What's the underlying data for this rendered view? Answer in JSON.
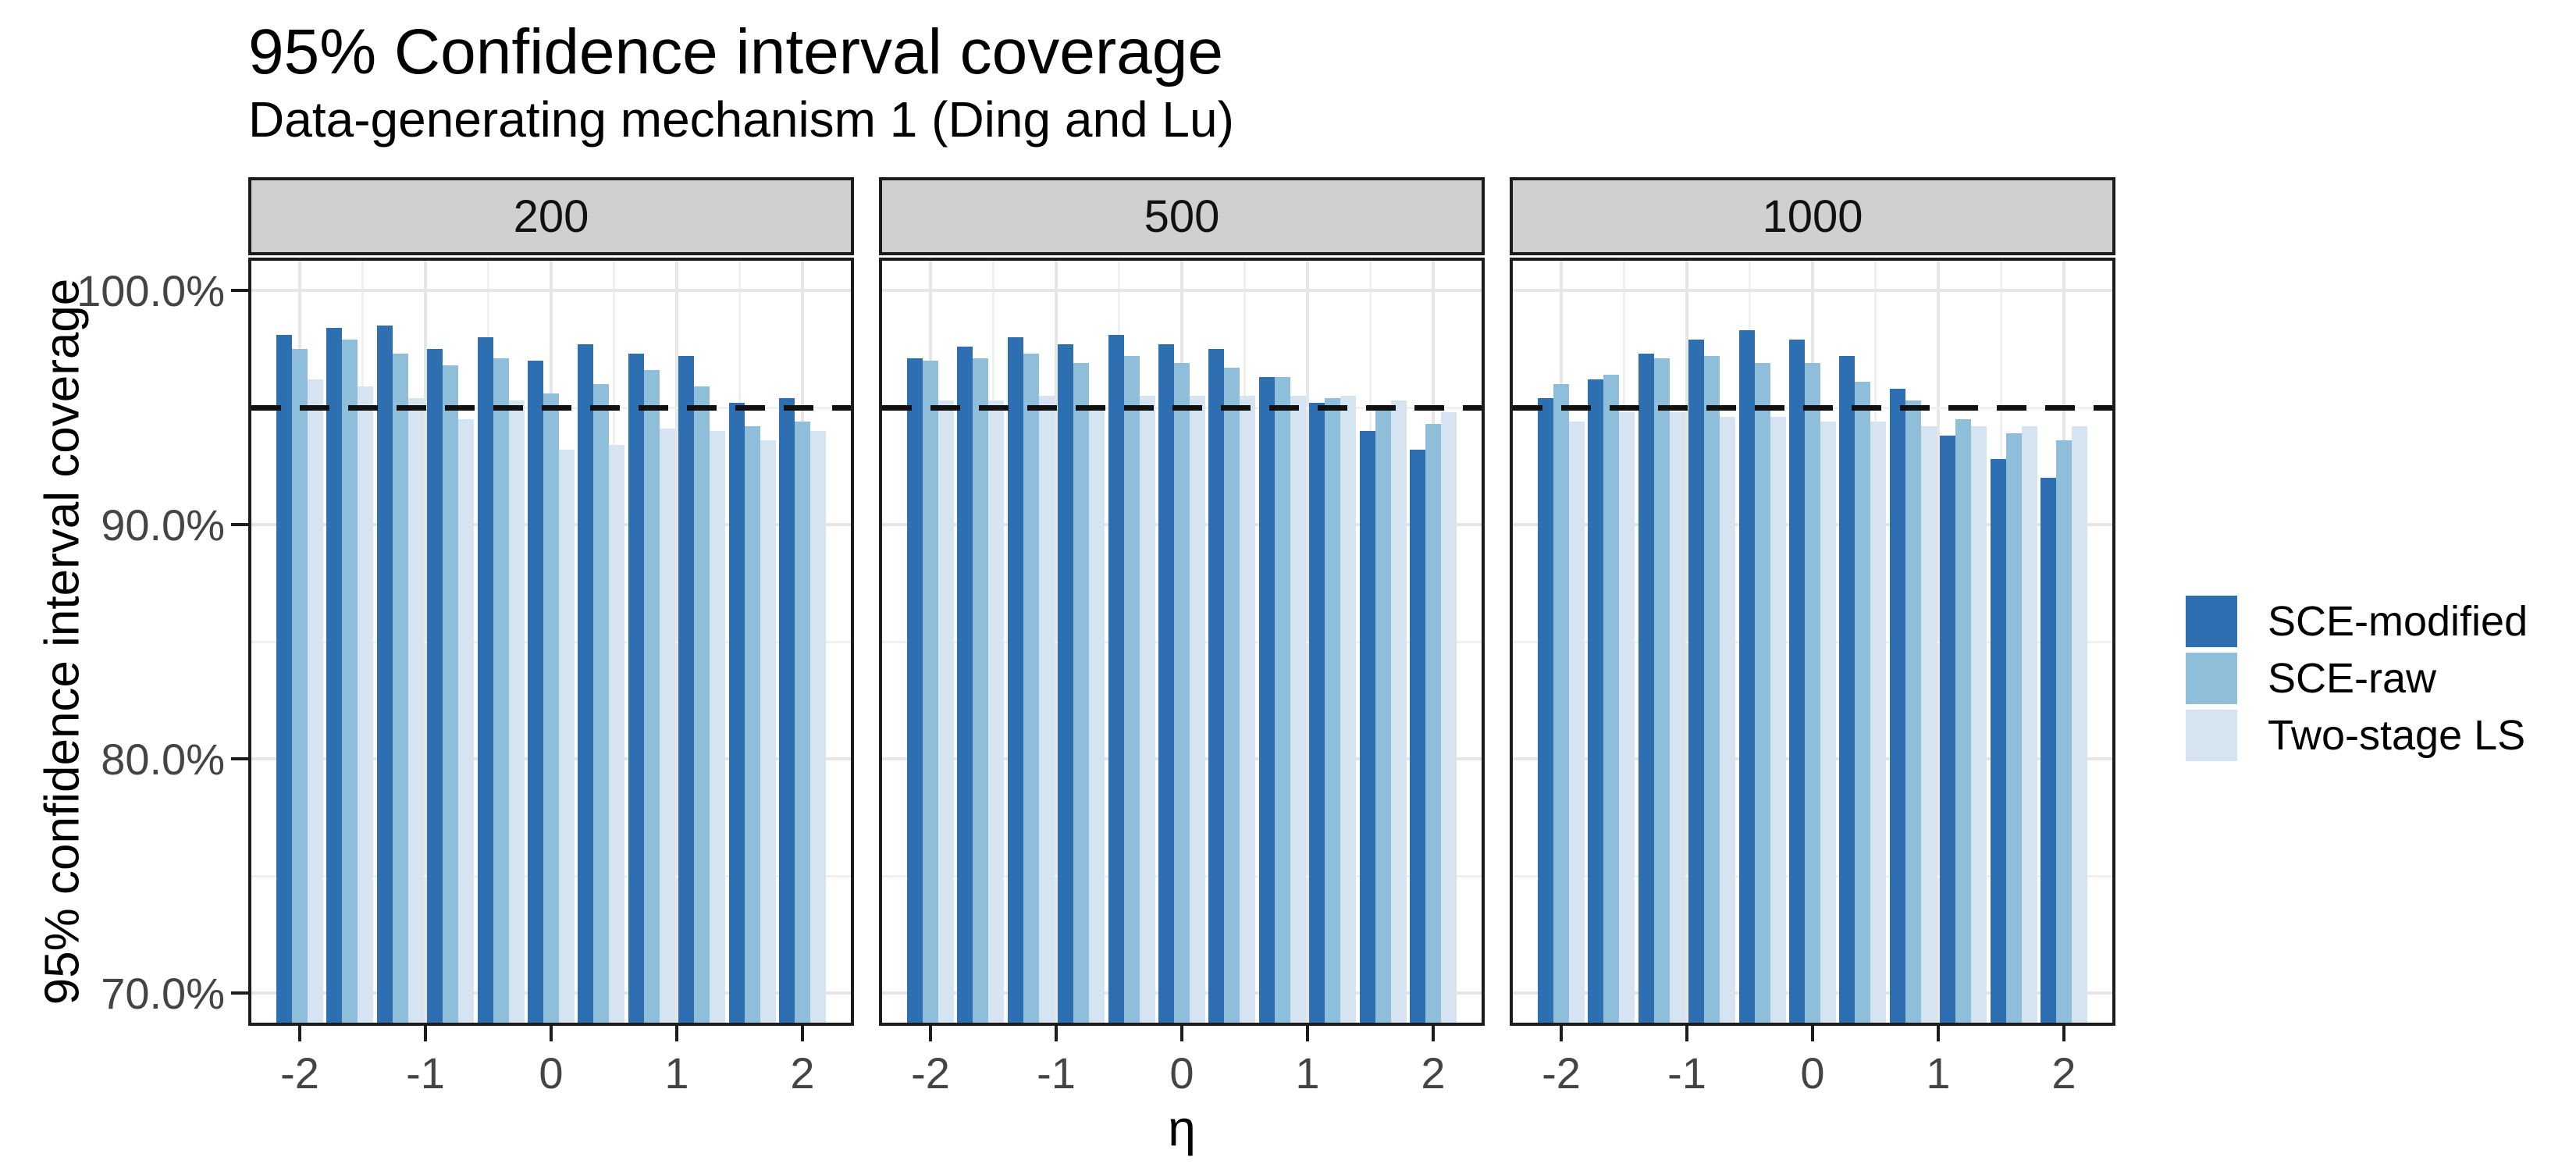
{
  "title": "95% Confidence interval coverage",
  "subtitle": "Data-generating mechanism 1 (Ding and Lu)",
  "y_axis": {
    "title": "95% confidence interval coverage",
    "tick_labels": [
      "100.0%",
      "90.0%",
      "80.0%",
      "70.0%"
    ],
    "tick_values": [
      100,
      90,
      80,
      70
    ]
  },
  "x_axis": {
    "title": "η",
    "tick_labels": [
      "-2",
      "-1",
      "0",
      "1",
      "2"
    ],
    "tick_values": [
      -2,
      -1,
      0,
      1,
      2
    ]
  },
  "reference_line": {
    "value": 95,
    "style": "dashed",
    "color": "#111111"
  },
  "legend": {
    "position": "right",
    "items": [
      {
        "label": "SCE-modified",
        "color": "#2E6FB1"
      },
      {
        "label": "SCE-raw",
        "color": "#8FBEDB"
      },
      {
        "label": "Two-stage LS",
        "color": "#D6E4F2"
      }
    ]
  },
  "colors": {
    "strip_bg": "#D0D0D0",
    "panel_border": "#1C1C1C",
    "grid": "#E8E8E8",
    "tick_label": "#444444",
    "background": "#FFFFFF"
  },
  "chart_data": {
    "type": "bar",
    "title": "95% Confidence interval coverage",
    "subtitle": "Data-generating mechanism 1 (Ding and Lu)",
    "xlabel": "η",
    "ylabel": "95% confidence interval coverage",
    "x": [
      -2,
      -1.6,
      -1.2,
      -0.8,
      -0.4,
      0,
      0.4,
      0.8,
      1.2,
      1.6,
      2
    ],
    "x_tick_values": [
      -2,
      -1,
      0,
      1,
      2
    ],
    "ylim": [
      68.6,
      101.4
    ],
    "y_tick_values_pct": [
      100,
      90,
      80,
      70
    ],
    "y_minor_grid_pct": [
      95,
      85,
      75
    ],
    "x_grid_step": 0.5,
    "reference_line_pct": 95,
    "grid": true,
    "legend_position": "right",
    "facet_values": [
      "200",
      "500",
      "1000"
    ],
    "facets": [
      {
        "label": "200",
        "series": [
          {
            "name": "SCE-modified",
            "values": [
              98.1,
              98.4,
              98.5,
              97.5,
              98.0,
              97.0,
              97.7,
              97.3,
              97.2,
              95.2,
              95.4
            ]
          },
          {
            "name": "SCE-raw",
            "values": [
              97.5,
              97.9,
              97.3,
              96.8,
              97.1,
              95.6,
              96.0,
              96.6,
              95.9,
              94.2,
              94.4
            ]
          },
          {
            "name": "Two-stage LS",
            "values": [
              96.2,
              95.9,
              95.4,
              94.5,
              95.3,
              93.2,
              93.4,
              94.1,
              94.0,
              93.6,
              94.0
            ]
          }
        ]
      },
      {
        "label": "500",
        "series": [
          {
            "name": "SCE-modified",
            "values": [
              97.1,
              97.6,
              98.0,
              97.7,
              98.1,
              97.7,
              97.5,
              96.3,
              95.2,
              94.0,
              93.2
            ]
          },
          {
            "name": "SCE-raw",
            "values": [
              97.0,
              97.1,
              97.3,
              96.9,
              97.2,
              96.9,
              96.7,
              96.3,
              95.4,
              94.9,
              94.3
            ]
          },
          {
            "name": "Two-stage LS",
            "values": [
              95.3,
              95.3,
              95.5,
              95.1,
              95.5,
              95.5,
              95.5,
              95.5,
              95.5,
              95.3,
              94.8
            ]
          }
        ]
      },
      {
        "label": "1000",
        "series": [
          {
            "name": "SCE-modified",
            "values": [
              95.4,
              96.2,
              97.3,
              97.9,
              98.3,
              97.9,
              97.2,
              95.8,
              93.8,
              92.8,
              92.0
            ]
          },
          {
            "name": "SCE-raw",
            "values": [
              96.0,
              96.4,
              97.1,
              97.2,
              96.9,
              96.9,
              96.1,
              95.3,
              94.5,
              93.9,
              93.6
            ]
          },
          {
            "name": "Two-stage LS",
            "values": [
              94.4,
              94.8,
              94.8,
              94.6,
              94.6,
              94.4,
              94.4,
              94.2,
              94.2,
              94.2,
              94.2
            ]
          }
        ]
      }
    ]
  }
}
